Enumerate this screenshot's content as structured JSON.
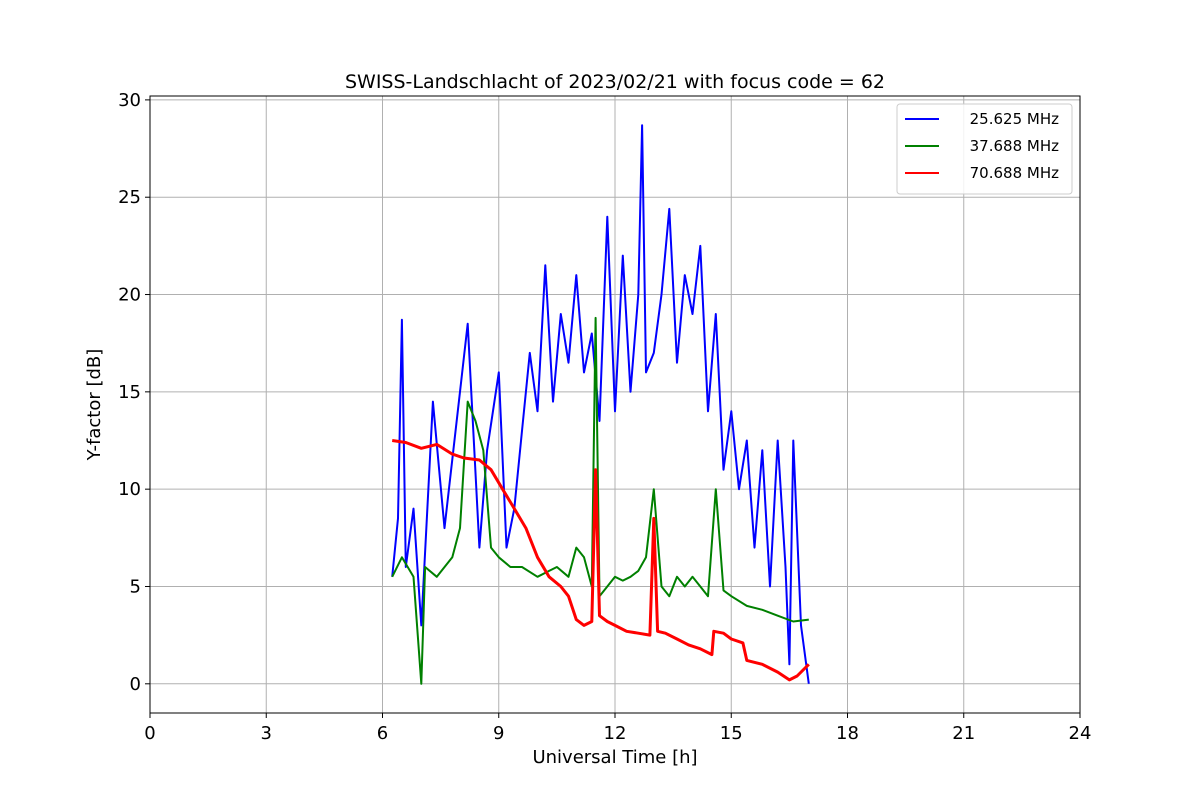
{
  "chart_data": {
    "type": "line",
    "title": "SWISS-Landschlacht of 2023/02/21 with focus code = 62",
    "xlabel": "Universal Time [h]",
    "ylabel": "Y-factor [dB]",
    "xlim": [
      0,
      24
    ],
    "ylim": [
      -1.5,
      30.2
    ],
    "xticks": [
      0,
      3,
      6,
      9,
      12,
      15,
      18,
      21,
      24
    ],
    "yticks": [
      0,
      5,
      10,
      15,
      20,
      25,
      30
    ],
    "grid": true,
    "legend_position": "top-right",
    "series": [
      {
        "name": "25.625 MHz",
        "color": "#0000ff",
        "x": [
          6.25,
          6.4,
          6.5,
          6.6,
          6.8,
          7.0,
          7.3,
          7.6,
          8.0,
          8.2,
          8.5,
          8.7,
          9.0,
          9.2,
          9.4,
          9.6,
          9.8,
          10.0,
          10.2,
          10.4,
          10.6,
          10.8,
          11.0,
          11.2,
          11.4,
          11.6,
          11.8,
          12.0,
          12.2,
          12.4,
          12.6,
          12.7,
          12.8,
          13.0,
          13.2,
          13.4,
          13.6,
          13.8,
          14.0,
          14.2,
          14.4,
          14.6,
          14.8,
          15.0,
          15.2,
          15.4,
          15.6,
          15.8,
          16.0,
          16.2,
          16.4,
          16.5,
          16.6,
          16.8,
          17.0
        ],
        "y": [
          5.5,
          8.5,
          18.7,
          6.0,
          9.0,
          3.0,
          14.5,
          8.0,
          15.0,
          18.5,
          7.0,
          12.0,
          16.0,
          7.0,
          9.0,
          13.0,
          17.0,
          14.0,
          21.5,
          14.5,
          19.0,
          16.5,
          21.0,
          16.0,
          18.0,
          13.5,
          24.0,
          14.0,
          22.0,
          15.0,
          20.0,
          28.7,
          16.0,
          17.0,
          20.0,
          24.4,
          16.5,
          21.0,
          19.0,
          22.5,
          14.0,
          19.0,
          11.0,
          14.0,
          10.0,
          12.5,
          7.0,
          12.0,
          5.0,
          12.5,
          6.0,
          1.0,
          12.5,
          3.0,
          0.0
        ]
      },
      {
        "name": "37.688 MHz",
        "color": "#008000",
        "x": [
          6.25,
          6.5,
          6.8,
          7.0,
          7.1,
          7.4,
          7.8,
          8.0,
          8.2,
          8.4,
          8.6,
          8.8,
          9.0,
          9.3,
          9.6,
          10.0,
          10.3,
          10.5,
          10.8,
          11.0,
          11.2,
          11.4,
          11.5,
          11.6,
          11.8,
          12.0,
          12.2,
          12.4,
          12.6,
          12.8,
          13.0,
          13.2,
          13.4,
          13.6,
          13.8,
          14.0,
          14.2,
          14.4,
          14.6,
          14.8,
          15.0,
          15.4,
          15.8,
          16.2,
          16.6,
          17.0
        ],
        "y": [
          5.5,
          6.5,
          5.5,
          0.0,
          6.0,
          5.5,
          6.5,
          8.0,
          14.5,
          13.5,
          12.0,
          7.0,
          6.5,
          6.0,
          6.0,
          5.5,
          5.8,
          6.0,
          5.5,
          7.0,
          6.5,
          5.0,
          18.8,
          4.5,
          5.0,
          5.5,
          5.3,
          5.5,
          5.8,
          6.5,
          10.0,
          5.0,
          4.5,
          5.5,
          5.0,
          5.5,
          5.0,
          4.5,
          10.0,
          4.8,
          4.5,
          4.0,
          3.8,
          3.5,
          3.2,
          3.3
        ]
      },
      {
        "name": "70.688 MHz",
        "color": "#ff0000",
        "x": [
          6.25,
          6.6,
          7.0,
          7.4,
          7.8,
          8.1,
          8.5,
          8.8,
          9.1,
          9.4,
          9.7,
          10.0,
          10.3,
          10.6,
          10.8,
          11.0,
          11.2,
          11.4,
          11.5,
          11.6,
          11.8,
          12.0,
          12.3,
          12.6,
          12.9,
          13.0,
          13.1,
          13.3,
          13.6,
          13.9,
          14.2,
          14.5,
          14.55,
          14.8,
          15.0,
          15.3,
          15.4,
          15.8,
          16.2,
          16.5,
          16.7,
          17.0
        ],
        "y": [
          12.5,
          12.4,
          12.1,
          12.3,
          11.8,
          11.6,
          11.5,
          11.0,
          10.0,
          9.0,
          8.0,
          6.5,
          5.5,
          5.0,
          4.5,
          3.3,
          3.0,
          3.2,
          11.0,
          3.5,
          3.2,
          3.0,
          2.7,
          2.6,
          2.5,
          8.5,
          2.7,
          2.6,
          2.3,
          2.0,
          1.8,
          1.5,
          2.7,
          2.6,
          2.3,
          2.1,
          1.2,
          1.0,
          0.6,
          0.2,
          0.4,
          1.0
        ]
      }
    ]
  }
}
